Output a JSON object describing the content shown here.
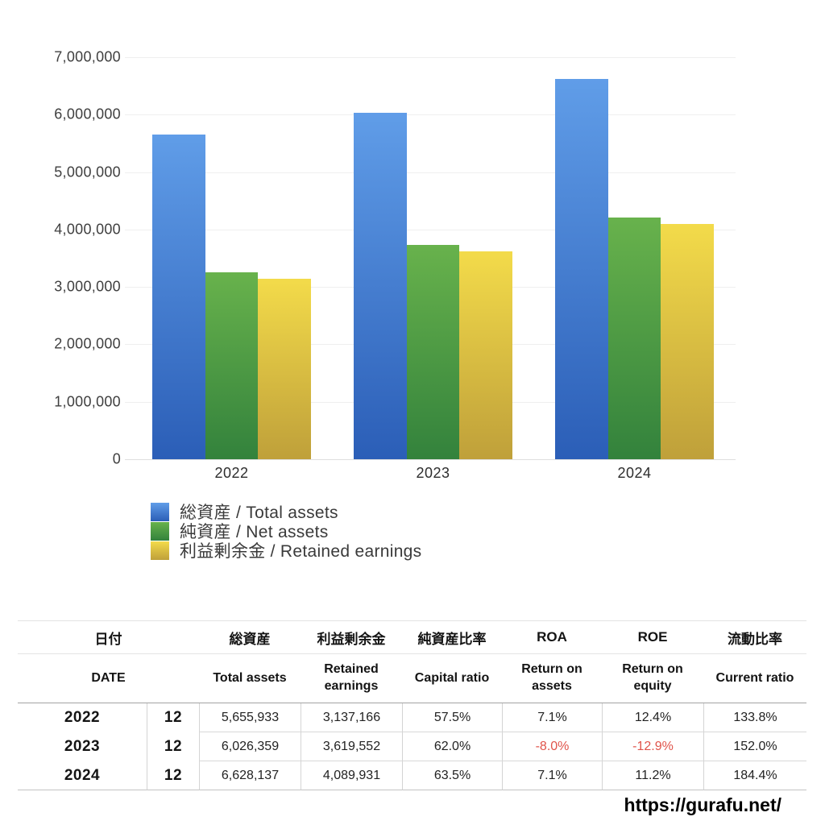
{
  "chart_data": {
    "type": "bar",
    "title": "",
    "categories": [
      "2022",
      "2023",
      "2024"
    ],
    "series": [
      {
        "name": "総資産 / Total assets",
        "values": [
          5655933,
          6026359,
          6628137
        ],
        "color_top": "#609de8",
        "color_bottom": "#2b5eb7"
      },
      {
        "name": "純資産 / Net assets",
        "values": [
          3252161,
          3736343,
          4208867
        ],
        "color_top": "#68b24c",
        "color_bottom": "#33823c"
      },
      {
        "name": "利益剰余金 / Retained earnings",
        "values": [
          3137166,
          3619552,
          4089931
        ],
        "color_top": "#f3db4a",
        "color_bottom": "#bfa03a"
      }
    ],
    "xlabel": "",
    "ylabel": "",
    "ylim": [
      0,
      7000000
    ],
    "y_tick_step": 1000000,
    "grid": true,
    "legend_position": "bottom-left"
  },
  "table": {
    "negative_color": "#e0544b",
    "header_jp": {
      "date": "日付",
      "total_assets": "総資産",
      "retained_earnings": "利益剰余金",
      "capital_ratio": "純資産比率",
      "roa": "ROA",
      "roe": "ROE",
      "current_ratio": "流動比率"
    },
    "header_en": {
      "date": "DATE",
      "total_assets": "Total assets",
      "retained_earnings": "Retained earnings",
      "capital_ratio": "Capital ratio",
      "roa": "Return on assets",
      "roe": "Return on equity",
      "current_ratio": "Current ratio"
    },
    "rows": [
      {
        "year": "2022",
        "month": "12",
        "total_assets": "5,655,933",
        "retained_earnings": "3,137,166",
        "capital_ratio": "57.5%",
        "roa": "7.1%",
        "roe": "12.4%",
        "current_ratio": "133.8%"
      },
      {
        "year": "2023",
        "month": "12",
        "total_assets": "6,026,359",
        "retained_earnings": "3,619,552",
        "capital_ratio": "62.0%",
        "roa": "-8.0%",
        "roe": "-12.9%",
        "current_ratio": "152.0%"
      },
      {
        "year": "2024",
        "month": "12",
        "total_assets": "6,628,137",
        "retained_earnings": "4,089,931",
        "capital_ratio": "63.5%",
        "roa": "7.1%",
        "roe": "11.2%",
        "current_ratio": "184.4%"
      }
    ]
  },
  "footer": {
    "url": "https://gurafu.net/"
  }
}
